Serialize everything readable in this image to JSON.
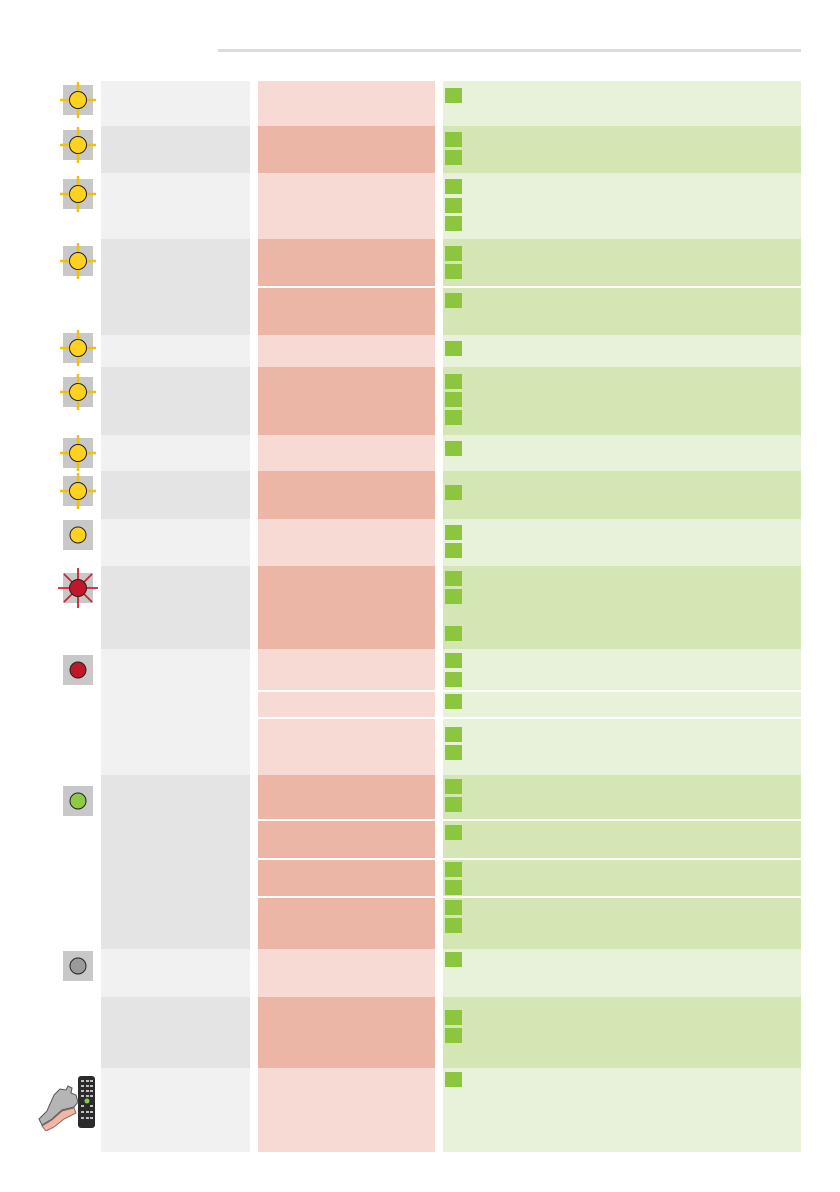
{
  "colors": {
    "yellow": "#ffd21f",
    "red": "#c0182a",
    "green": "#8dcb45",
    "grey": "#9a9a9a",
    "bullet": "#8cc63e"
  },
  "icons": {
    "flashing_yellow": "flashing-yellow-lamp-icon",
    "steady_yellow": "steady-yellow-lamp-icon",
    "flashing_red": "flashing-red-lamp-icon",
    "steady_red": "steady-red-lamp-icon",
    "steady_green": "steady-green-lamp-icon",
    "off": "off-lamp-icon",
    "remote": "hand-remote-control-icon"
  }
}
